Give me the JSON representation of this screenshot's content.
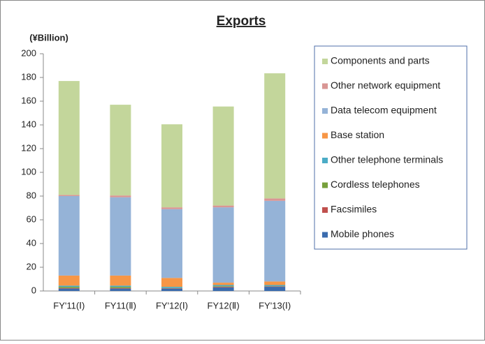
{
  "chart_data": {
    "type": "stacked_bar",
    "title": "Exports",
    "y_label": "(¥Billion)",
    "categories": [
      "FY'11(Ⅰ)",
      "FY11(Ⅱ)",
      "FY'12(Ⅰ)",
      "FY12(Ⅱ)",
      "FY'13(Ⅰ)"
    ],
    "series": [
      {
        "name": "Mobile phones",
        "color": "#3b6cae",
        "values": [
          2,
          2,
          2,
          3,
          3.5
        ]
      },
      {
        "name": "Facsimiles",
        "color": "#c0504d",
        "values": [
          0.5,
          0.5,
          0.3,
          0.5,
          0.3
        ]
      },
      {
        "name": "Cordless telephones",
        "color": "#77a03c",
        "values": [
          1,
          1,
          0.2,
          0.5,
          0.2
        ]
      },
      {
        "name": "Other telephone terminals",
        "color": "#4bacc6",
        "values": [
          1,
          1,
          1,
          1,
          1
        ]
      },
      {
        "name": "Base station",
        "color": "#f79646",
        "values": [
          8.5,
          8.5,
          7.5,
          2,
          3
        ]
      },
      {
        "name": "Data telecom equipment",
        "color": "#95b3d7",
        "values": [
          67,
          66,
          58,
          63.5,
          68
        ]
      },
      {
        "name": "Other network equipment",
        "color": "#d99694",
        "values": [
          1,
          1.5,
          1.5,
          1.5,
          2
        ]
      },
      {
        "name": "Components and parts",
        "color": "#c3d69b",
        "values": [
          96,
          76.5,
          70,
          83.5,
          105.5
        ]
      }
    ],
    "ylim": [
      0,
      200
    ],
    "yticks": [
      0,
      20,
      40,
      60,
      80,
      100,
      120,
      140,
      160,
      180,
      200
    ],
    "grid": false,
    "legend": "right"
  }
}
